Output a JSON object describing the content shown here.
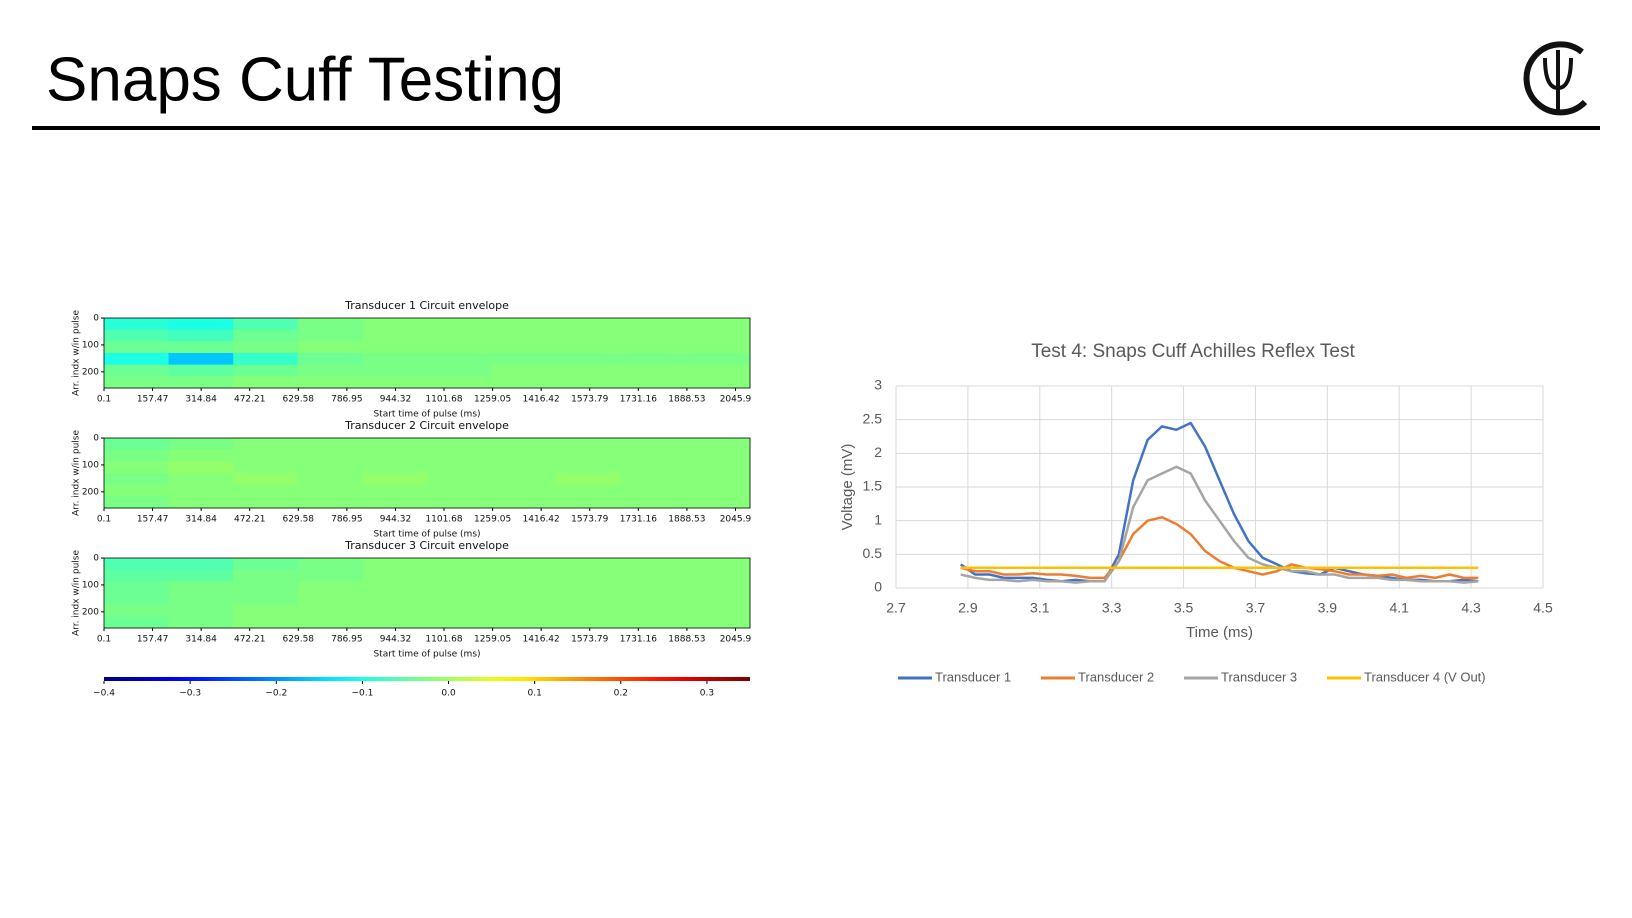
{
  "header": {
    "title": "Snaps Cuff Testing"
  },
  "chart_data": [
    {
      "type": "heatmap",
      "title": "Transducer 1 Circuit envelope",
      "xlabel": "Start time of pulse (ms)",
      "ylabel": "Arr. indx w/in pulse",
      "xlim": [
        0.1,
        2093
      ],
      "xticks": [
        0.1,
        157.47,
        314.84,
        472.21,
        629.58,
        786.95,
        944.32,
        1101.68,
        1259.05,
        1416.42,
        1573.79,
        1731.16,
        1888.53,
        2045.9
      ],
      "ylim": [
        0,
        260
      ],
      "yticks": [
        0,
        100,
        200
      ],
      "z": [
        [
          -0.09,
          -0.1,
          -0.06,
          -0.03,
          -0.02,
          -0.02,
          -0.02,
          -0.02,
          -0.02,
          -0.02
        ],
        [
          -0.06,
          -0.07,
          -0.04,
          -0.03,
          -0.02,
          -0.02,
          -0.02,
          -0.02,
          -0.02,
          -0.02
        ],
        [
          -0.04,
          -0.04,
          -0.03,
          -0.02,
          -0.02,
          -0.02,
          -0.02,
          -0.02,
          -0.02,
          -0.02
        ],
        [
          -0.1,
          -0.16,
          -0.08,
          -0.04,
          -0.03,
          -0.03,
          -0.03,
          -0.03,
          -0.03,
          -0.03
        ],
        [
          -0.04,
          -0.05,
          -0.04,
          -0.03,
          -0.03,
          -0.03,
          -0.02,
          -0.02,
          -0.02,
          -0.02
        ],
        [
          -0.03,
          -0.03,
          -0.02,
          -0.02,
          -0.02,
          -0.02,
          -0.02,
          -0.02,
          -0.02,
          -0.02
        ]
      ]
    },
    {
      "type": "heatmap",
      "title": "Transducer 2 Circuit envelope",
      "xlabel": "Start time of pulse (ms)",
      "ylabel": "Arr. indx w/in pulse",
      "xlim": [
        0.1,
        2093
      ],
      "xticks": [
        0.1,
        157.47,
        314.84,
        472.21,
        629.58,
        786.95,
        944.32,
        1101.68,
        1259.05,
        1416.42,
        1573.79,
        1731.16,
        1888.53,
        2045.9
      ],
      "ylim": [
        0,
        260
      ],
      "yticks": [
        0,
        100,
        200
      ],
      "z": [
        [
          -0.04,
          -0.03,
          -0.02,
          -0.02,
          -0.02,
          -0.02,
          -0.02,
          -0.02,
          -0.02,
          -0.02
        ],
        [
          -0.03,
          -0.02,
          -0.02,
          -0.02,
          -0.02,
          -0.02,
          -0.02,
          -0.02,
          -0.02,
          -0.02
        ],
        [
          -0.02,
          -0.01,
          -0.02,
          -0.02,
          -0.02,
          -0.02,
          -0.02,
          -0.02,
          -0.02,
          -0.02
        ],
        [
          -0.03,
          -0.02,
          -0.01,
          -0.02,
          -0.01,
          -0.02,
          -0.02,
          -0.01,
          -0.02,
          -0.02
        ],
        [
          -0.02,
          -0.02,
          -0.02,
          -0.02,
          -0.02,
          -0.02,
          -0.02,
          -0.02,
          -0.02,
          -0.02
        ],
        [
          -0.03,
          -0.02,
          -0.02,
          -0.02,
          -0.02,
          -0.02,
          -0.02,
          -0.02,
          -0.02,
          -0.02
        ]
      ]
    },
    {
      "type": "heatmap",
      "title": "Transducer 3 Circuit envelope",
      "xlabel": "Start time of pulse (ms)",
      "ylabel": "Arr. indx w/in pulse",
      "xlim": [
        0.1,
        2093
      ],
      "xticks": [
        0.1,
        157.47,
        314.84,
        472.21,
        629.58,
        786.95,
        944.32,
        1101.68,
        1259.05,
        1416.42,
        1573.79,
        1731.16,
        1888.53,
        2045.9
      ],
      "ylim": [
        0,
        260
      ],
      "yticks": [
        0,
        100,
        200
      ],
      "z": [
        [
          -0.06,
          -0.06,
          -0.04,
          -0.03,
          -0.02,
          -0.02,
          -0.02,
          -0.02,
          -0.02,
          -0.02
        ],
        [
          -0.05,
          -0.05,
          -0.03,
          -0.03,
          -0.02,
          -0.02,
          -0.02,
          -0.02,
          -0.02,
          -0.02
        ],
        [
          -0.04,
          -0.03,
          -0.03,
          -0.02,
          -0.02,
          -0.02,
          -0.02,
          -0.02,
          -0.02,
          -0.02
        ],
        [
          -0.04,
          -0.03,
          -0.03,
          -0.02,
          -0.02,
          -0.02,
          -0.02,
          -0.02,
          -0.02,
          -0.02
        ],
        [
          -0.03,
          -0.03,
          -0.02,
          -0.02,
          -0.02,
          -0.02,
          -0.02,
          -0.02,
          -0.02,
          -0.02
        ],
        [
          -0.04,
          -0.03,
          -0.02,
          -0.02,
          -0.02,
          -0.02,
          -0.02,
          -0.02,
          -0.02,
          -0.02
        ]
      ]
    },
    {
      "type": "colorbar",
      "colormap": "jet",
      "xlim": [
        -0.4,
        0.35
      ],
      "xticks": [
        {
          "value": -0.4,
          "label": "−0.4"
        },
        {
          "value": -0.3,
          "label": "−0.3"
        },
        {
          "value": -0.2,
          "label": "−0.2"
        },
        {
          "value": -0.1,
          "label": "−0.1"
        },
        {
          "value": 0,
          "label": "0.0"
        },
        0.1,
        0.2,
        0.3
      ]
    },
    {
      "type": "line",
      "title": "Test 4: Snaps Cuff Achilles Reflex Test",
      "xlabel": "Time (ms)",
      "ylabel": "Voltage (mV)",
      "xlim": [
        2.7,
        4.5
      ],
      "xticks": [
        2.7,
        2.9,
        3.1,
        3.3,
        3.5,
        3.7,
        3.9,
        4.1,
        4.3,
        4.5
      ],
      "ylim": [
        0,
        3
      ],
      "yticks": [
        0,
        0.5,
        1,
        1.5,
        2,
        2.5,
        3
      ],
      "grid": true,
      "legend": "bottom",
      "x": [
        2.88,
        2.92,
        2.96,
        3.0,
        3.04,
        3.08,
        3.12,
        3.16,
        3.2,
        3.24,
        3.28,
        3.32,
        3.36,
        3.4,
        3.44,
        3.48,
        3.52,
        3.56,
        3.6,
        3.64,
        3.68,
        3.72,
        3.76,
        3.8,
        3.84,
        3.88,
        3.92,
        3.96,
        4.0,
        4.04,
        4.08,
        4.12,
        4.16,
        4.2,
        4.24,
        4.28,
        4.32
      ],
      "series": [
        {
          "name": "Transducer 1",
          "color": "#4472c4",
          "values": [
            0.35,
            0.2,
            0.2,
            0.15,
            0.15,
            0.15,
            0.12,
            0.1,
            0.12,
            0.1,
            0.1,
            0.5,
            1.6,
            2.2,
            2.4,
            2.35,
            2.45,
            2.1,
            1.6,
            1.1,
            0.7,
            0.45,
            0.35,
            0.25,
            0.22,
            0.2,
            0.3,
            0.25,
            0.2,
            0.18,
            0.15,
            0.12,
            0.12,
            0.1,
            0.1,
            0.12,
            0.1
          ]
        },
        {
          "name": "Transducer 2",
          "color": "#ed7d31",
          "values": [
            0.3,
            0.25,
            0.25,
            0.2,
            0.2,
            0.22,
            0.2,
            0.2,
            0.18,
            0.15,
            0.15,
            0.4,
            0.8,
            1.0,
            1.05,
            0.95,
            0.8,
            0.55,
            0.4,
            0.3,
            0.25,
            0.2,
            0.25,
            0.35,
            0.3,
            0.28,
            0.25,
            0.2,
            0.2,
            0.18,
            0.2,
            0.15,
            0.18,
            0.15,
            0.2,
            0.15,
            0.15
          ]
        },
        {
          "name": "Transducer 3",
          "color": "#a5a5a5",
          "values": [
            0.2,
            0.15,
            0.12,
            0.12,
            0.1,
            0.12,
            0.1,
            0.1,
            0.08,
            0.1,
            0.1,
            0.4,
            1.2,
            1.6,
            1.7,
            1.8,
            1.7,
            1.3,
            1.0,
            0.7,
            0.45,
            0.35,
            0.3,
            0.25,
            0.25,
            0.2,
            0.2,
            0.15,
            0.15,
            0.15,
            0.12,
            0.12,
            0.1,
            0.1,
            0.1,
            0.08,
            0.1
          ]
        },
        {
          "name": "Transducer 4 (V Out)",
          "color": "#ffc000",
          "values": [
            0.3,
            0.3,
            0.3,
            0.3,
            0.3,
            0.3,
            0.3,
            0.3,
            0.3,
            0.3,
            0.3,
            0.3,
            0.3,
            0.3,
            0.3,
            0.3,
            0.3,
            0.3,
            0.3,
            0.3,
            0.3,
            0.3,
            0.3,
            0.3,
            0.3,
            0.3,
            0.3,
            0.3,
            0.3,
            0.3,
            0.3,
            0.3,
            0.3,
            0.3,
            0.3,
            0.3,
            0.3
          ]
        }
      ]
    }
  ]
}
